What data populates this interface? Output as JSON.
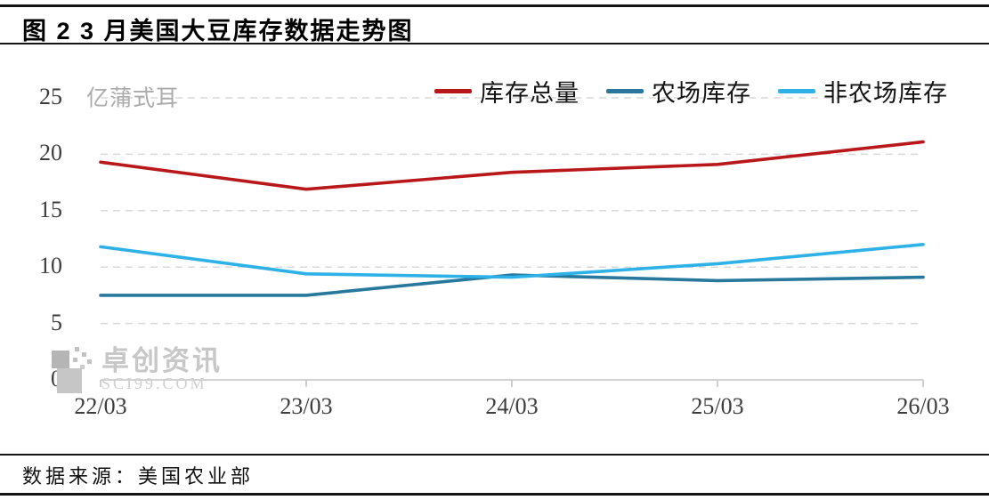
{
  "header": {
    "title": "图 2  3 月美国大豆库存数据走势图"
  },
  "footer": {
    "source": "数据来源：美国农业部"
  },
  "watermark": {
    "name": "卓创资讯",
    "site": "SCI99.COM"
  },
  "chart_data": {
    "type": "line",
    "title": "3 月美国大豆库存数据走势图",
    "unit_label": "亿蒲式耳",
    "categories": [
      "22/03",
      "23/03",
      "24/03",
      "25/03",
      "26/03"
    ],
    "series": [
      {
        "name": "库存总量",
        "color": "#b9181b",
        "values": [
          19.3,
          16.9,
          18.4,
          19.1,
          21.1
        ]
      },
      {
        "name": "农场库存",
        "color": "#27789c",
        "values": [
          7.5,
          7.5,
          9.3,
          8.8,
          9.1
        ]
      },
      {
        "name": "非农场库存",
        "color": "#2eb1e7",
        "values": [
          11.8,
          9.4,
          9.1,
          10.3,
          12.0
        ]
      }
    ],
    "ylim": [
      0,
      25
    ],
    "yticks": [
      0,
      5,
      10,
      15,
      20,
      25
    ],
    "grid": "dashed-horizontal",
    "gridline_color": "#d8d8d8",
    "axis_color": "#c4c4c4",
    "legend_position": "top-right"
  }
}
